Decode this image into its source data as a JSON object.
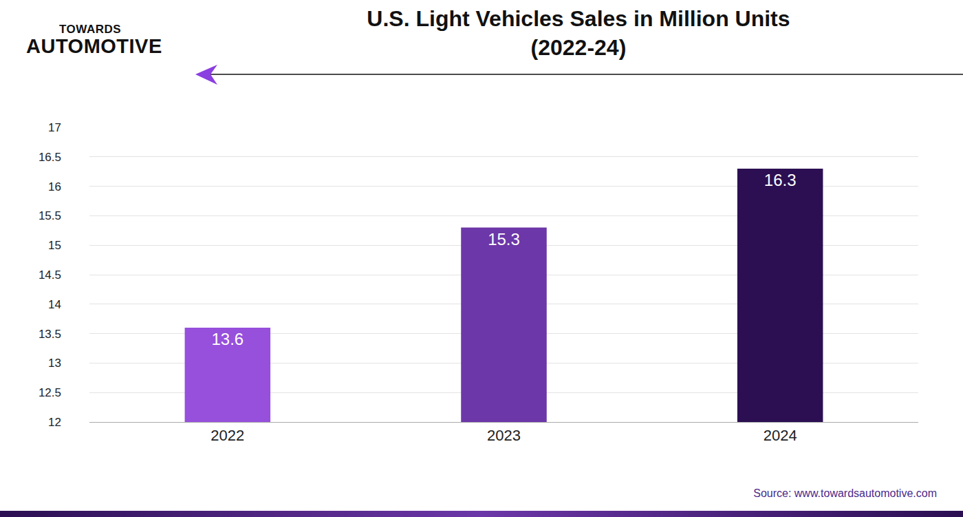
{
  "header": {
    "logo": [
      "TOWARDS",
      "AUTOMOTIVE"
    ]
  },
  "chart_data": {
    "type": "bar",
    "title": "U.S. Light Vehicles Sales in Million Units\n(2022-24)",
    "categories": [
      "2022",
      "2023",
      "2024"
    ],
    "values": [
      13.6,
      15.3,
      16.3
    ],
    "colors": [
      "#9650dc",
      "#6c37a8",
      "#2b0f52"
    ],
    "ylim": [
      12,
      17
    ],
    "yticks": [
      12,
      12.5,
      13,
      13.5,
      14,
      14.5,
      15,
      15.5,
      16,
      16.5,
      17
    ],
    "grid": true,
    "data_labels": true
  },
  "footer": {
    "source": "Source: www.towardsautomotive.com"
  }
}
